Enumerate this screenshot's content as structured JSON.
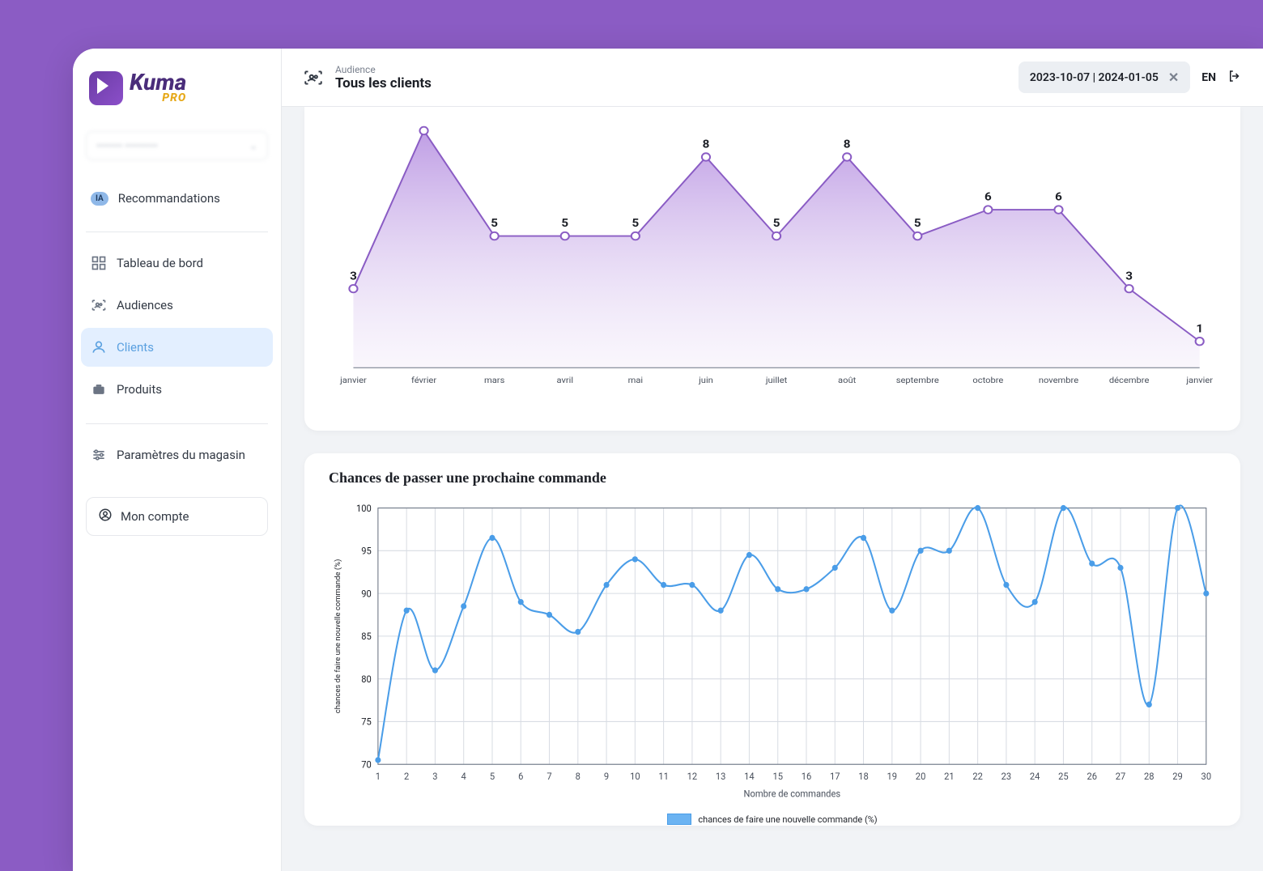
{
  "brand": {
    "name": "Kuma",
    "suffix": "PRO"
  },
  "account_selector": {
    "value": "•••••••• ••••••••••"
  },
  "sidebar": {
    "items": [
      {
        "label": "Recommandations",
        "badge": "IA"
      },
      {
        "label": "Tableau de bord"
      },
      {
        "label": "Audiences"
      },
      {
        "label": "Clients"
      },
      {
        "label": "Produits"
      },
      {
        "label": "Paramètres du magasin"
      }
    ],
    "account_button": "Mon compte"
  },
  "topbar": {
    "audience_label": "Audience",
    "audience_value": "Tous les clients",
    "date_range": "2023-10-07 | 2024-01-05",
    "lang": "EN"
  },
  "chart1": {
    "type": "area",
    "line_color": "#8a5cc4",
    "fill_top": "#b48de0",
    "fill_bottom": "#ede3f7",
    "marker_stroke": "#8a5cc4",
    "marker_fill": "#ffffff",
    "marker_radius": 5,
    "line_width": 2,
    "value_fontsize": 15,
    "categories": [
      "janvier",
      "février",
      "mars",
      "avril",
      "mai",
      "juin",
      "juillet",
      "août",
      "septembre",
      "octobre",
      "novembre",
      "décembre",
      "janvier"
    ],
    "values": [
      3,
      9,
      5,
      5,
      5,
      8,
      5,
      8,
      5,
      6,
      6,
      3,
      1
    ],
    "ymax": 9,
    "background": "#ffffff"
  },
  "chart2": {
    "type": "line",
    "title": "Chances de passer une prochaine commande",
    "line_color": "#4a9de8",
    "marker_fill": "#4a9de8",
    "marker_radius": 3.5,
    "line_width": 2,
    "xlabel": "Nombre de commandes",
    "ylabel": "chances de faire une nouvelle commande (%)",
    "legend": "chances de faire une nouvelle commande (%)",
    "legend_swatch": "#6bb3f2",
    "ylim": [
      70,
      100
    ],
    "ytick_step": 5,
    "x_values": [
      1,
      2,
      3,
      4,
      5,
      6,
      7,
      8,
      9,
      10,
      11,
      12,
      13,
      14,
      15,
      16,
      17,
      18,
      19,
      20,
      21,
      22,
      23,
      24,
      25,
      26,
      27,
      28,
      29,
      30
    ],
    "y_values": [
      70.5,
      88,
      81,
      88.5,
      96.5,
      89,
      87.5,
      85.5,
      91,
      94,
      91,
      91,
      88,
      94.5,
      90.5,
      90.5,
      93,
      96.5,
      88,
      95,
      95,
      100,
      91,
      89,
      100,
      93.5,
      93,
      77,
      100,
      90
    ],
    "grid_color": "#d8dce3",
    "axis_color": "#6b7483",
    "background": "#ffffff",
    "label_fontsize": 11
  }
}
